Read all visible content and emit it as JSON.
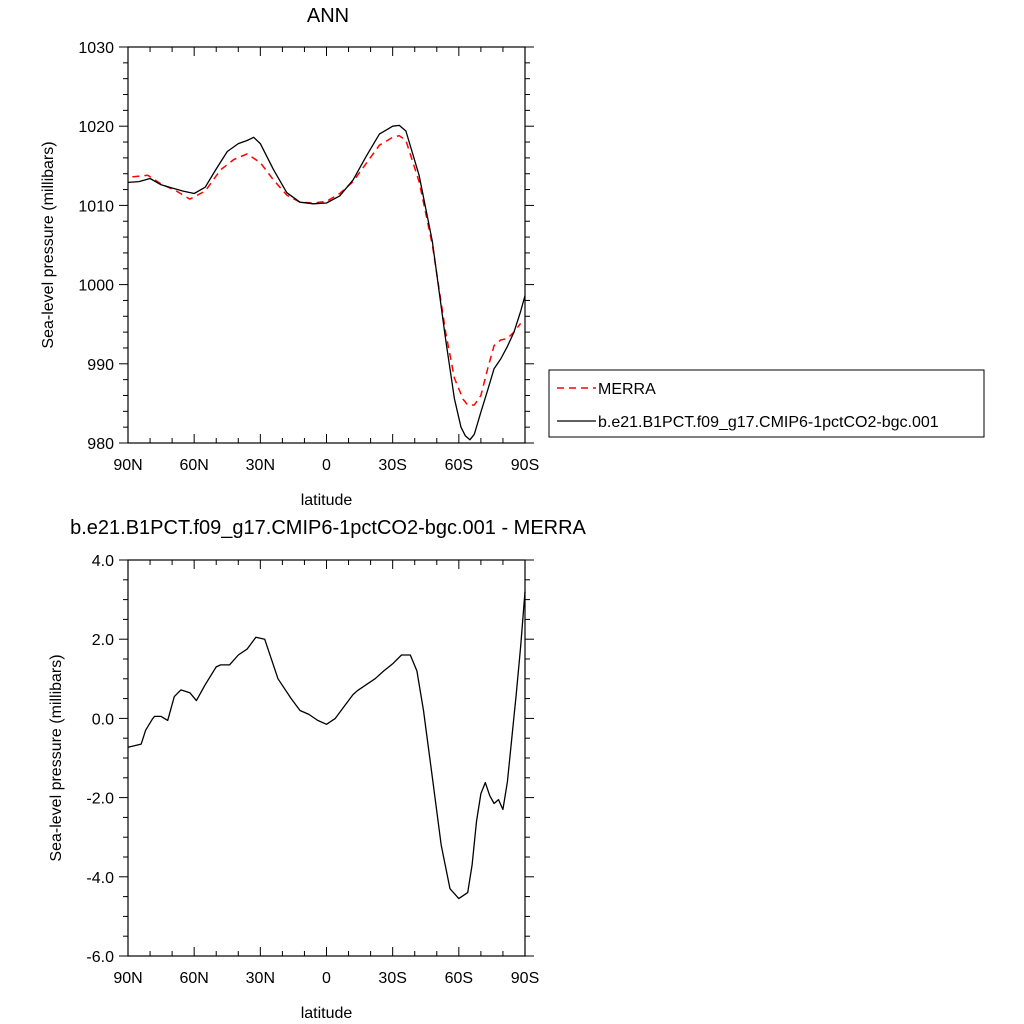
{
  "chart_data": [
    {
      "type": "line",
      "title": "ANN",
      "xlabel": "latitude",
      "ylabel": "Sea-level pressure (millibars)",
      "xlim": [
        90,
        -90
      ],
      "ylim": [
        980,
        1030
      ],
      "x_ticks": [
        90,
        60,
        30,
        0,
        -30,
        -60,
        -90
      ],
      "x_tick_labels": [
        "90N",
        "60N",
        "30N",
        "0",
        "30S",
        "60S",
        "90S"
      ],
      "y_ticks": [
        980,
        990,
        1000,
        1010,
        1020,
        1030
      ],
      "y_tick_labels": [
        "980",
        "990",
        "1000",
        "1010",
        "1020",
        "1030"
      ],
      "legend_placement": "right",
      "series": [
        {
          "name": "MERRA",
          "color": "#ff0000",
          "dashed": true,
          "x": [
            88,
            81,
            75,
            68,
            62,
            55,
            48,
            42,
            36,
            30,
            24,
            18,
            12,
            6,
            0,
            -6,
            -12,
            -18,
            -24,
            -30,
            -33,
            -36,
            -42,
            -48,
            -54,
            -58,
            -62,
            -64,
            -67,
            -70,
            -73,
            -76,
            -79,
            -82,
            -85,
            -88
          ],
          "y": [
            1013.6,
            1013.8,
            1012.7,
            1011.8,
            1010.8,
            1011.8,
            1014.5,
            1015.8,
            1016.5,
            1015.4,
            1013.2,
            1011.3,
            1010.4,
            1010.3,
            1010.5,
            1011.5,
            1013.0,
            1015.3,
            1017.6,
            1018.6,
            1018.8,
            1018.2,
            1013.0,
            1005.0,
            994.0,
            988.2,
            985.5,
            984.8,
            984.8,
            986.0,
            989.3,
            992.3,
            993.0,
            993.2,
            994.0,
            995.1
          ]
        },
        {
          "name": "b.e21.B1PCT.f09_g17.CMIP6-1pctCO2-bgc.001",
          "color": "#000000",
          "dashed": false,
          "x": [
            90,
            85,
            80,
            75,
            70,
            65,
            60,
            55,
            50,
            45,
            40,
            36,
            33,
            30,
            24,
            18,
            12,
            6,
            0,
            -6,
            -12,
            -18,
            -24,
            -30,
            -33,
            -36,
            -42,
            -48,
            -54,
            -58,
            -61,
            -63,
            -65,
            -67,
            -70,
            -73,
            -76,
            -79,
            -82,
            -85,
            -88,
            -90
          ],
          "y": [
            1012.9,
            1013.0,
            1013.4,
            1012.6,
            1012.2,
            1011.8,
            1011.5,
            1012.3,
            1014.6,
            1016.8,
            1017.8,
            1018.2,
            1018.6,
            1017.8,
            1014.5,
            1011.6,
            1010.4,
            1010.2,
            1010.3,
            1011.2,
            1013.2,
            1016.2,
            1019.0,
            1020.0,
            1020.1,
            1019.4,
            1013.8,
            1005.4,
            993.1,
            985.6,
            982.0,
            980.9,
            980.4,
            981.1,
            983.9,
            986.6,
            989.4,
            990.6,
            992.2,
            994.0,
            996.6,
            998.6
          ]
        }
      ]
    },
    {
      "type": "line",
      "title": "b.e21.B1PCT.f09_g17.CMIP6-1pctCO2-bgc.001 - MERRA",
      "xlabel": "latitude",
      "ylabel": "Sea-level pressure (millibars)",
      "xlim": [
        90,
        -90
      ],
      "ylim": [
        -6,
        4
      ],
      "x_ticks": [
        90,
        60,
        30,
        0,
        -30,
        -60,
        -90
      ],
      "x_tick_labels": [
        "90N",
        "60N",
        "30N",
        "0",
        "30S",
        "60S",
        "90S"
      ],
      "y_ticks": [
        -6,
        -4,
        -2,
        0,
        2,
        4
      ],
      "y_tick_labels": [
        "-6.0",
        "-4.0",
        "-2.0",
        "0.0",
        "2.0",
        "4.0"
      ],
      "series": [
        {
          "color": "#000000",
          "dashed": false,
          "x": [
            90,
            84,
            82,
            79,
            78,
            75,
            72,
            69,
            66,
            62,
            59,
            55,
            50,
            48,
            44,
            40,
            36,
            32,
            28,
            22,
            16,
            12,
            8,
            4,
            0,
            -4,
            -8,
            -12,
            -14,
            -18,
            -22,
            -26,
            -30,
            -34,
            -38,
            -41,
            -44,
            -48,
            -52,
            -56,
            -60,
            -64,
            -66,
            -68,
            -70,
            -72,
            -74,
            -76,
            -78,
            -80,
            -82,
            -84,
            -86,
            -88,
            -90
          ],
          "y": [
            -0.73,
            -0.65,
            -0.3,
            -0.02,
            0.05,
            0.05,
            -0.05,
            0.55,
            0.72,
            0.65,
            0.45,
            0.85,
            1.3,
            1.35,
            1.35,
            1.6,
            1.75,
            2.05,
            2.0,
            1.0,
            0.5,
            0.2,
            0.1,
            -0.05,
            -0.15,
            0.0,
            0.3,
            0.6,
            0.7,
            0.85,
            1.0,
            1.2,
            1.38,
            1.6,
            1.6,
            1.2,
            0.2,
            -1.5,
            -3.2,
            -4.3,
            -4.55,
            -4.4,
            -3.7,
            -2.6,
            -1.9,
            -1.62,
            -1.95,
            -2.15,
            -2.05,
            -2.3,
            -1.6,
            -0.5,
            0.6,
            1.8,
            3.2
          ]
        }
      ]
    }
  ]
}
